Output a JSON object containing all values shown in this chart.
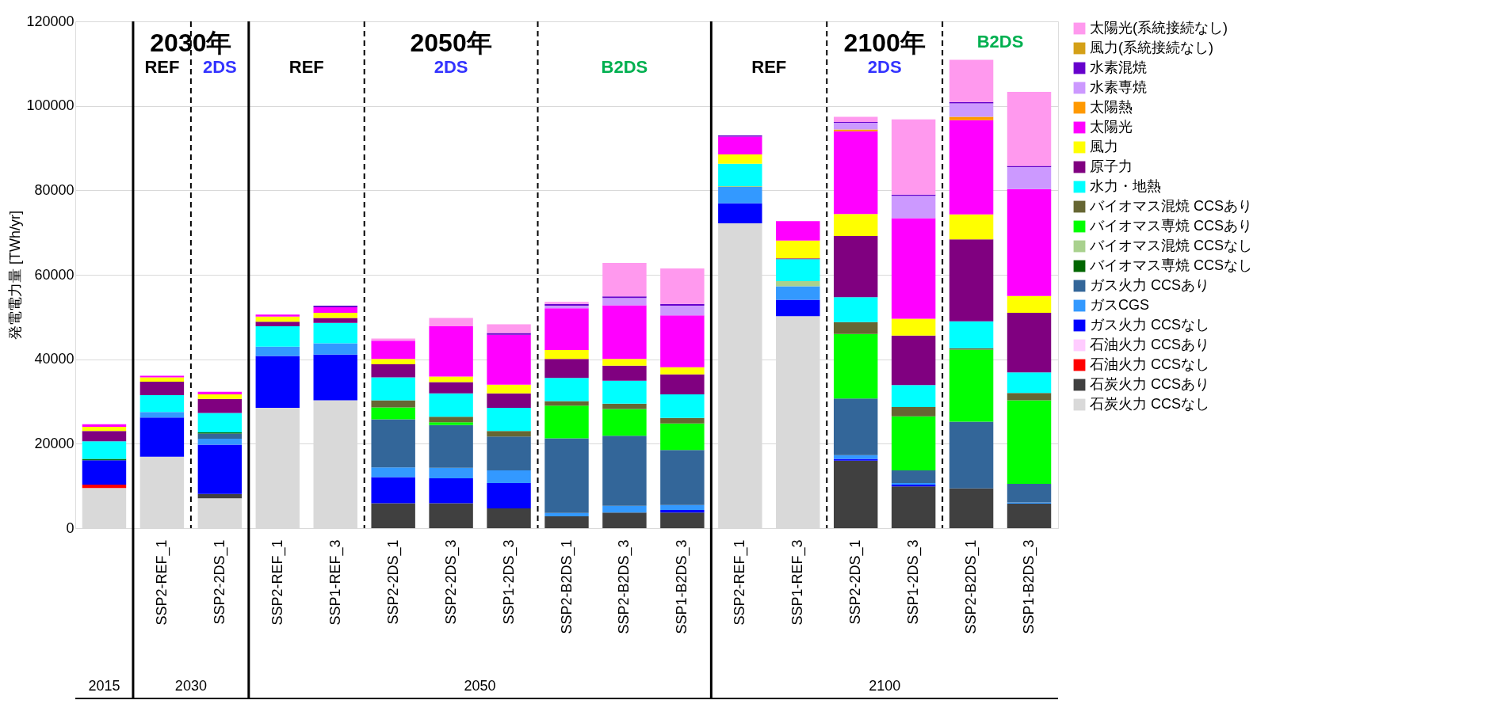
{
  "chart_data": {
    "type": "bar",
    "stacked": true,
    "ylabel": "発電電力量 [TWh/yr]",
    "categories": [
      null,
      "SSP2-REF_1",
      "SSP2-2DS_1",
      "SSP2-REF_1",
      "SSP1-REF_3",
      "SSP2-2DS_1",
      "SSP2-2DS_3",
      "SSP1-2DS_3",
      "SSP2-B2DS_1",
      "SSP2-B2DS_3",
      "SSP1-B2DS_3",
      "SSP2-REF_1",
      "SSP1-REF_3",
      "SSP2-2DS_1",
      "SSP1-2DS_3",
      "SSP2-B2DS_1",
      "SSP1-B2DS_3"
    ],
    "ylim": [
      0,
      120000
    ],
    "yticks": [
      0,
      20000,
      40000,
      60000,
      80000,
      100000,
      120000
    ],
    "grid": "y",
    "legend": "right",
    "annotations": [
      "2030年",
      "REF",
      "2DS",
      "2050年",
      "REF",
      "2DS",
      "B2DS",
      "2100年",
      "REF",
      "2DS",
      "B2DS",
      "2015",
      "2030",
      "2050",
      "2100"
    ],
    "series": [
      {
        "name": "石炭火力 CCSなし",
        "color": "#d9d9d9",
        "values": [
          9500,
          16900,
          7100,
          28500,
          30300,
          null,
          null,
          null,
          null,
          null,
          null,
          72200,
          50200,
          null,
          null,
          null,
          null
        ]
      },
      {
        "name": "石炭火力 CCSあり",
        "color": "#404040",
        "values": [
          null,
          null,
          1000,
          null,
          null,
          5900,
          5900,
          4700,
          2800,
          3700,
          3700,
          null,
          null,
          16000,
          9900,
          9400,
          5800
        ]
      },
      {
        "name": "石油火力 CCSなし",
        "color": "#ff0000",
        "values": [
          800,
          null,
          null,
          null,
          null,
          null,
          null,
          null,
          null,
          null,
          null,
          null,
          null,
          null,
          null,
          null,
          null
        ]
      },
      {
        "name": "石油火力 CCSあり",
        "color": "#ffccff",
        "values": [
          null,
          null,
          null,
          null,
          null,
          null,
          null,
          null,
          null,
          null,
          null,
          null,
          null,
          null,
          null,
          null,
          null
        ]
      },
      {
        "name": "ガス火力 CCSなし",
        "color": "#0000ff",
        "values": [
          5800,
          9300,
          11700,
          12300,
          10800,
          6200,
          5900,
          6000,
          null,
          null,
          600,
          4700,
          3900,
          400,
          400,
          null,
          null
        ]
      },
      {
        "name": "ガスCGS",
        "color": "#3399ff",
        "values": [
          null,
          1300,
          1400,
          2200,
          2700,
          2300,
          2500,
          3000,
          800,
          1600,
          1200,
          3900,
          3200,
          900,
          400,
          null,
          300
        ]
      },
      {
        "name": "ガス火力 CCSあり",
        "color": "#336699",
        "values": [
          null,
          null,
          1200,
          null,
          null,
          11400,
          10100,
          8000,
          17700,
          16600,
          13000,
          null,
          null,
          13400,
          3000,
          15800,
          4400
        ]
      },
      {
        "name": "バイオマス専焼 CCSなし",
        "color": "#006600",
        "values": [
          300,
          null,
          300,
          null,
          null,
          null,
          null,
          null,
          null,
          null,
          null,
          null,
          null,
          null,
          null,
          null,
          null
        ]
      },
      {
        "name": "バイオマス混焼 CCSなし",
        "color": "#a9d18e",
        "values": [
          null,
          null,
          null,
          null,
          null,
          null,
          null,
          null,
          null,
          null,
          null,
          200,
          1200,
          null,
          null,
          null,
          null
        ]
      },
      {
        "name": "バイオマス専焼 CCSあり",
        "color": "#00ff00",
        "values": [
          null,
          null,
          null,
          null,
          null,
          2800,
          700,
          null,
          7700,
          6300,
          6300,
          null,
          null,
          15300,
          12800,
          17100,
          19800
        ]
      },
      {
        "name": "バイオマス混焼 CCSあり",
        "color": "#666633",
        "values": [
          null,
          null,
          null,
          null,
          null,
          1700,
          1300,
          1300,
          1100,
          1300,
          1300,
          null,
          null,
          2800,
          2200,
          300,
          1700
        ]
      },
      {
        "name": "水力・地熱",
        "color": "#00ffff",
        "values": [
          4200,
          4000,
          4600,
          4800,
          4800,
          5400,
          5500,
          5500,
          5500,
          5400,
          5600,
          5300,
          5200,
          5900,
          5200,
          6400,
          4900
        ]
      },
      {
        "name": "原子力",
        "color": "#800080",
        "values": [
          2400,
          3200,
          3300,
          1100,
          1200,
          3100,
          2700,
          3400,
          4500,
          3600,
          4700,
          null,
          200,
          14500,
          11700,
          19400,
          14100
        ]
      },
      {
        "name": "風力",
        "color": "#ffff00",
        "values": [
          1000,
          1000,
          1100,
          1200,
          1200,
          1300,
          1300,
          2100,
          2100,
          1600,
          1700,
          2200,
          4200,
          5200,
          4000,
          5900,
          4000
        ]
      },
      {
        "name": "太陽光",
        "color": "#ff00ff",
        "values": [
          600,
          400,
          600,
          500,
          1300,
          4300,
          11900,
          11800,
          9900,
          12700,
          12300,
          4200,
          4600,
          19600,
          23800,
          22300,
          25300
        ]
      },
      {
        "name": "太陽熱",
        "color": "#ff9900",
        "values": [
          null,
          null,
          null,
          null,
          null,
          null,
          null,
          null,
          null,
          null,
          null,
          null,
          null,
          400,
          null,
          800,
          null
        ]
      },
      {
        "name": "水素専焼",
        "color": "#cc99ff",
        "values": [
          null,
          null,
          null,
          null,
          null,
          null,
          null,
          null,
          600,
          1700,
          2300,
          null,
          null,
          1600,
          5300,
          3200,
          5200
        ]
      },
      {
        "name": "水素混焼",
        "color": "#6600cc",
        "values": [
          null,
          null,
          null,
          null,
          400,
          null,
          null,
          400,
          400,
          400,
          400,
          300,
          null,
          200,
          300,
          300,
          300
        ]
      },
      {
        "name": "風力(系統接続なし)",
        "color": "#d4a017",
        "values": [
          null,
          null,
          null,
          null,
          null,
          null,
          null,
          null,
          null,
          null,
          null,
          null,
          null,
          null,
          null,
          null,
          null
        ]
      },
      {
        "name": "太陽光(系統接続なし)",
        "color": "#ff99ee",
        "values": [
          null,
          null,
          null,
          null,
          null,
          500,
          2000,
          2100,
          500,
          7900,
          8400,
          null,
          null,
          1200,
          17800,
          10000,
          17500
        ]
      }
    ]
  }
}
